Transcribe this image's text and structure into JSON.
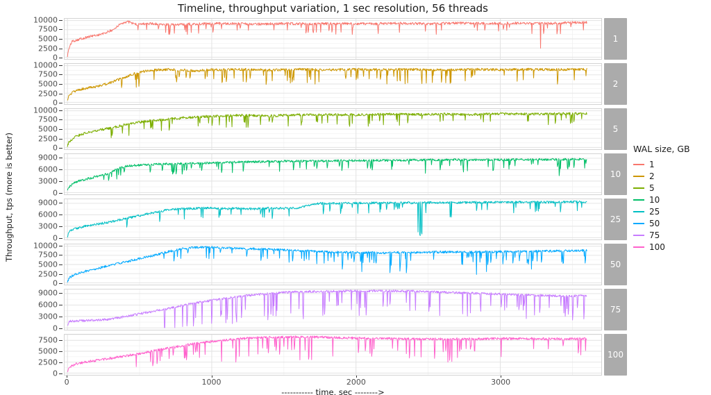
{
  "chart_data": {
    "type": "line",
    "title": "Timeline, throughput variation, 1 sec resolution, 56 threads",
    "xlabel": "----------- time, sec -------->",
    "ylabel": "Throughput, tps (more is better)",
    "legend_title": "WAL size, GB",
    "facet_variable": "WAL size, GB",
    "x_ticks": [
      0,
      1000,
      2000,
      3000
    ],
    "xlim": [
      -20,
      3700
    ],
    "x_data_range": [
      0,
      3600
    ],
    "layout": {
      "strip_bg": "#ABABAB",
      "strip_text": "#FFFFFF",
      "grid_major": "#E2E2E2",
      "grid_minor": "#F0F0F0",
      "panel_border": "#D4D4D4",
      "panel_bg": "#FFFFFF",
      "tick_text": "#4D4D4D",
      "legend_position": "right",
      "grid": "on"
    },
    "series": [
      {
        "name": "1",
        "wal_size_gb": 1,
        "color": "#F8766D",
        "seed": 101,
        "noise": 350,
        "ylim": [
          -500,
          10500
        ],
        "y_ticks": [
          0,
          2500,
          5000,
          7500,
          10000
        ],
        "base": [
          [
            0,
            300
          ],
          [
            8,
            2000
          ],
          [
            30,
            4300
          ],
          [
            80,
            4900
          ],
          [
            150,
            5600
          ],
          [
            250,
            6400
          ],
          [
            320,
            7600
          ],
          [
            380,
            9400
          ],
          [
            420,
            9700
          ],
          [
            480,
            8900
          ],
          [
            550,
            9200
          ],
          [
            700,
            8900
          ],
          [
            900,
            9100
          ],
          [
            1100,
            9200
          ],
          [
            1300,
            9000
          ],
          [
            1500,
            9200
          ],
          [
            1700,
            9100
          ],
          [
            1900,
            9200
          ],
          [
            2100,
            9100
          ],
          [
            2300,
            9300
          ],
          [
            2500,
            9100
          ],
          [
            2700,
            9300
          ],
          [
            2900,
            9200
          ],
          [
            3100,
            9300
          ],
          [
            3300,
            9200
          ],
          [
            3500,
            9400
          ],
          [
            3600,
            9500
          ]
        ],
        "dips": [
          {
            "from": 300,
            "to": 3600,
            "prob": 0.05,
            "min": 900,
            "max": 3000
          },
          {
            "from": 1500,
            "to": 3600,
            "prob": 0.006,
            "min": 3500,
            "max": 6800
          }
        ]
      },
      {
        "name": "2",
        "wal_size_gb": 2,
        "color": "#CD9600",
        "seed": 102,
        "noise": 350,
        "ylim": [
          -500,
          10500
        ],
        "y_ticks": [
          0,
          2500,
          5000,
          7500,
          10000
        ],
        "base": [
          [
            0,
            400
          ],
          [
            10,
            1600
          ],
          [
            40,
            2900
          ],
          [
            100,
            3600
          ],
          [
            200,
            4300
          ],
          [
            300,
            5400
          ],
          [
            400,
            6900
          ],
          [
            500,
            8300
          ],
          [
            600,
            8800
          ],
          [
            700,
            9000
          ],
          [
            800,
            8800
          ],
          [
            900,
            8600
          ],
          [
            1000,
            8900
          ],
          [
            1200,
            9000
          ],
          [
            1400,
            8800
          ],
          [
            1600,
            9000
          ],
          [
            1800,
            8800
          ],
          [
            2000,
            9000
          ],
          [
            2200,
            8900
          ],
          [
            2400,
            9000
          ],
          [
            2600,
            8800
          ],
          [
            2800,
            9000
          ],
          [
            3000,
            8900
          ],
          [
            3200,
            9000
          ],
          [
            3400,
            8900
          ],
          [
            3600,
            9000
          ]
        ],
        "dips": [
          {
            "from": 350,
            "to": 3600,
            "prob": 0.07,
            "min": 1500,
            "max": 4000
          }
        ]
      },
      {
        "name": "5",
        "wal_size_gb": 5,
        "color": "#7CAE00",
        "seed": 103,
        "noise": 350,
        "ylim": [
          -500,
          10500
        ],
        "y_ticks": [
          0,
          2500,
          5000,
          7500,
          10000
        ],
        "base": [
          [
            0,
            300
          ],
          [
            10,
            1500
          ],
          [
            50,
            2900
          ],
          [
            120,
            3900
          ],
          [
            200,
            4600
          ],
          [
            300,
            5300
          ],
          [
            400,
            6200
          ],
          [
            500,
            6900
          ],
          [
            600,
            7400
          ],
          [
            700,
            7700
          ],
          [
            800,
            8100
          ],
          [
            1000,
            8500
          ],
          [
            1200,
            8800
          ],
          [
            1400,
            8600
          ],
          [
            1600,
            8900
          ],
          [
            1800,
            9000
          ],
          [
            2000,
            8900
          ],
          [
            2200,
            9100
          ],
          [
            2400,
            9000
          ],
          [
            2600,
            9100
          ],
          [
            2800,
            9000
          ],
          [
            3000,
            9200
          ],
          [
            3200,
            9100
          ],
          [
            3400,
            9200
          ],
          [
            3600,
            9200
          ]
        ],
        "dips": [
          {
            "from": 250,
            "to": 3600,
            "prob": 0.06,
            "min": 1200,
            "max": 3300
          }
        ]
      },
      {
        "name": "10",
        "wal_size_gb": 10,
        "color": "#00BE67",
        "seed": 104,
        "noise": 300,
        "ylim": [
          -480,
          10080
        ],
        "y_ticks": [
          0,
          3000,
          6000,
          9000
        ],
        "base": [
          [
            0,
            300
          ],
          [
            10,
            1500
          ],
          [
            60,
            2800
          ],
          [
            120,
            3400
          ],
          [
            200,
            4200
          ],
          [
            280,
            4900
          ],
          [
            350,
            6300
          ],
          [
            420,
            7000
          ],
          [
            500,
            7200
          ],
          [
            600,
            7400
          ],
          [
            800,
            7600
          ],
          [
            1000,
            7800
          ],
          [
            1200,
            8000
          ],
          [
            1500,
            8200
          ],
          [
            1800,
            8300
          ],
          [
            2100,
            8400
          ],
          [
            2400,
            8500
          ],
          [
            2700,
            8600
          ],
          [
            3000,
            8600
          ],
          [
            3300,
            8700
          ],
          [
            3600,
            8700
          ]
        ],
        "dips": [
          {
            "from": 250,
            "to": 3600,
            "prob": 0.06,
            "min": 1000,
            "max": 2800
          },
          {
            "from": 2200,
            "to": 3600,
            "prob": 0.012,
            "min": 2800,
            "max": 4600
          }
        ]
      },
      {
        "name": "25",
        "wal_size_gb": 25,
        "color": "#00BFC4",
        "seed": 105,
        "noise": 300,
        "ylim": [
          -480,
          10080
        ],
        "y_ticks": [
          0,
          3000,
          6000,
          9000
        ],
        "base": [
          [
            0,
            300
          ],
          [
            15,
            1700
          ],
          [
            60,
            2400
          ],
          [
            120,
            3000
          ],
          [
            200,
            3500
          ],
          [
            300,
            4200
          ],
          [
            400,
            5000
          ],
          [
            500,
            5800
          ],
          [
            600,
            6600
          ],
          [
            700,
            7300
          ],
          [
            800,
            7600
          ],
          [
            900,
            7700
          ],
          [
            1000,
            7800
          ],
          [
            1100,
            7600
          ],
          [
            1200,
            7700
          ],
          [
            1300,
            7500
          ],
          [
            1400,
            7800
          ],
          [
            1500,
            7700
          ],
          [
            1600,
            7800
          ],
          [
            1680,
            8600
          ],
          [
            1750,
            9000
          ],
          [
            1900,
            9000
          ],
          [
            2100,
            9100
          ],
          [
            2300,
            9100
          ],
          [
            2500,
            9200
          ],
          [
            2700,
            9200
          ],
          [
            2900,
            9300
          ],
          [
            3100,
            9300
          ],
          [
            3300,
            9300
          ],
          [
            3500,
            9400
          ],
          [
            3600,
            9400
          ]
        ],
        "dips": [
          {
            "from": 300,
            "to": 3600,
            "prob": 0.05,
            "min": 1000,
            "max": 2800
          },
          {
            "from": 2430,
            "to": 2465,
            "prob": 0.4,
            "min": 7000,
            "max": 8900
          },
          {
            "from": 2600,
            "to": 2680,
            "prob": 0.1,
            "min": 3000,
            "max": 4000
          }
        ]
      },
      {
        "name": "50",
        "wal_size_gb": 50,
        "color": "#00A9FF",
        "seed": 106,
        "noise": 320,
        "ylim": [
          -500,
          10500
        ],
        "y_ticks": [
          0,
          2500,
          5000,
          7500,
          10000
        ],
        "base": [
          [
            0,
            300
          ],
          [
            15,
            1500
          ],
          [
            60,
            2400
          ],
          [
            120,
            3100
          ],
          [
            200,
            3900
          ],
          [
            300,
            4800
          ],
          [
            400,
            5700
          ],
          [
            500,
            6600
          ],
          [
            600,
            7500
          ],
          [
            700,
            8500
          ],
          [
            800,
            9300
          ],
          [
            900,
            9700
          ],
          [
            1000,
            9700
          ],
          [
            1100,
            9500
          ],
          [
            1200,
            9400
          ],
          [
            1300,
            9300
          ],
          [
            1400,
            9200
          ],
          [
            1500,
            9000
          ],
          [
            1600,
            8800
          ],
          [
            1700,
            8600
          ],
          [
            1800,
            8400
          ],
          [
            2000,
            8300
          ],
          [
            2200,
            8200
          ],
          [
            2400,
            8300
          ],
          [
            2600,
            8400
          ],
          [
            2800,
            8400
          ],
          [
            3000,
            8500
          ],
          [
            3200,
            8600
          ],
          [
            3400,
            8700
          ],
          [
            3600,
            8800
          ]
        ],
        "dips": [
          {
            "from": 650,
            "to": 3600,
            "prob": 0.06,
            "min": 1200,
            "max": 3500
          },
          {
            "from": 1900,
            "to": 3300,
            "prob": 0.01,
            "min": 4000,
            "max": 6200
          }
        ]
      },
      {
        "name": "75",
        "wal_size_gb": 75,
        "color": "#C77CFF",
        "seed": 107,
        "noise": 300,
        "ylim": [
          -480,
          10080
        ],
        "y_ticks": [
          0,
          3000,
          6000,
          9000
        ],
        "base": [
          [
            0,
            500
          ],
          [
            15,
            1800
          ],
          [
            100,
            1900
          ],
          [
            200,
            2000
          ],
          [
            300,
            2300
          ],
          [
            400,
            3000
          ],
          [
            500,
            3700
          ],
          [
            600,
            4400
          ],
          [
            700,
            5100
          ],
          [
            800,
            5900
          ],
          [
            900,
            6600
          ],
          [
            1000,
            7200
          ],
          [
            1100,
            7800
          ],
          [
            1200,
            8300
          ],
          [
            1300,
            8700
          ],
          [
            1400,
            9000
          ],
          [
            1500,
            9300
          ],
          [
            1600,
            9500
          ],
          [
            1800,
            9600
          ],
          [
            2000,
            9700
          ],
          [
            2200,
            9700
          ],
          [
            2400,
            9600
          ],
          [
            2600,
            9400
          ],
          [
            2800,
            9100
          ],
          [
            3000,
            8900
          ],
          [
            3200,
            8600
          ],
          [
            3400,
            8400
          ],
          [
            3600,
            8400
          ]
        ],
        "dips": [
          {
            "from": 600,
            "to": 1700,
            "prob": 0.11,
            "min": 3000,
            "max": 7200
          },
          {
            "from": 1700,
            "to": 3600,
            "prob": 0.08,
            "min": 2500,
            "max": 6500
          }
        ]
      },
      {
        "name": "100",
        "wal_size_gb": 100,
        "color": "#FF61CC",
        "seed": 108,
        "noise": 280,
        "ylim": [
          -420,
          8820
        ],
        "y_ticks": [
          0,
          2500,
          5000,
          7500
        ],
        "base": [
          [
            0,
            300
          ],
          [
            15,
            1400
          ],
          [
            60,
            2100
          ],
          [
            120,
            2500
          ],
          [
            200,
            2900
          ],
          [
            300,
            3400
          ],
          [
            400,
            3900
          ],
          [
            500,
            4500
          ],
          [
            600,
            5100
          ],
          [
            700,
            5700
          ],
          [
            800,
            6300
          ],
          [
            900,
            6800
          ],
          [
            1000,
            7200
          ],
          [
            1100,
            7600
          ],
          [
            1200,
            7900
          ],
          [
            1300,
            8100
          ],
          [
            1400,
            8200
          ],
          [
            1600,
            8300
          ],
          [
            1800,
            8200
          ],
          [
            2000,
            8000
          ],
          [
            2200,
            7900
          ],
          [
            2400,
            7800
          ],
          [
            2600,
            7800
          ],
          [
            2800,
            7800
          ],
          [
            3000,
            7900
          ],
          [
            3200,
            7900
          ],
          [
            3400,
            7800
          ],
          [
            3600,
            7900
          ]
        ],
        "dips": [
          {
            "from": 350,
            "to": 1000,
            "prob": 0.05,
            "min": 1500,
            "max": 3500
          },
          {
            "from": 1000,
            "to": 2700,
            "prob": 0.09,
            "min": 2000,
            "max": 5600
          },
          {
            "from": 2700,
            "to": 3600,
            "prob": 0.06,
            "min": 1500,
            "max": 4500
          }
        ]
      }
    ]
  }
}
